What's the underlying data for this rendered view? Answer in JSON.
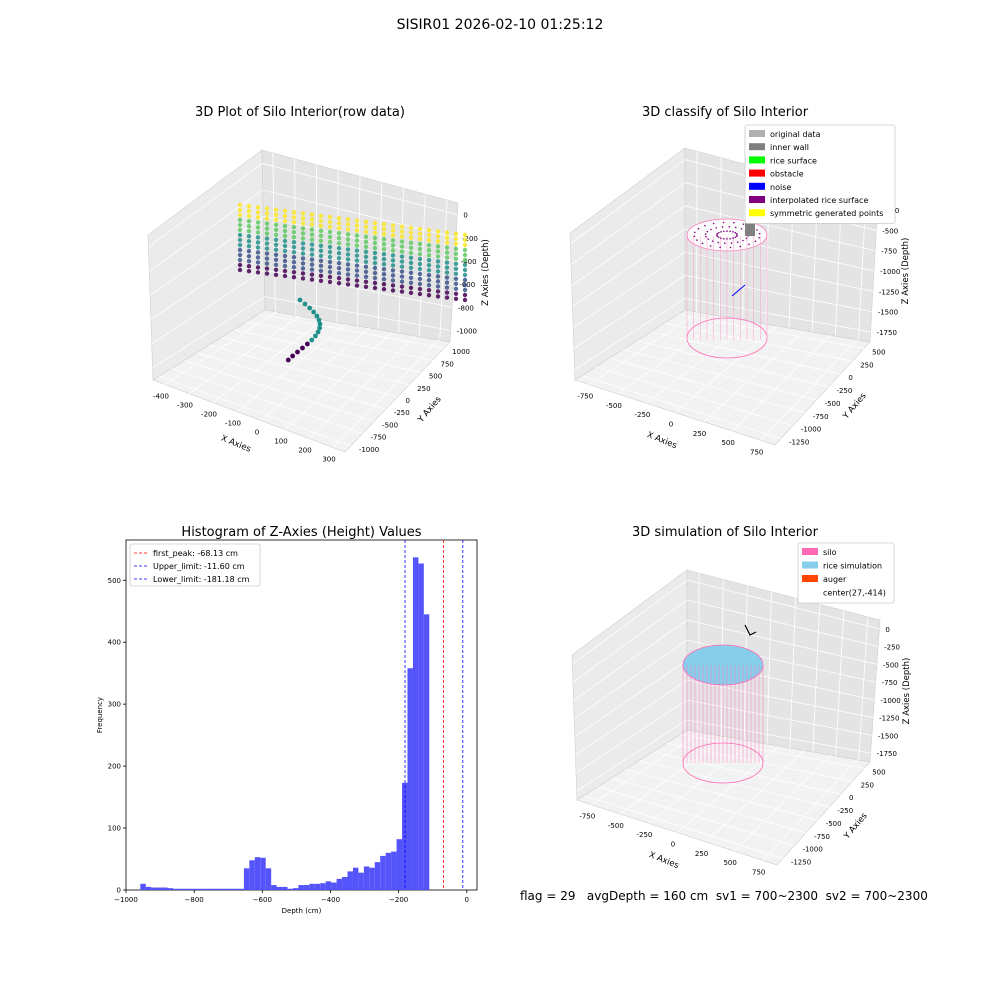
{
  "suptitle": "SISIR01 2026-02-10 01:25:12",
  "footer": "flag = 29   avgDepth = 160 cm  sv1 = 700~2300  sv2 = 700~2300",
  "chart_data": [
    {
      "type": "scatter",
      "projection": "3d",
      "title": "3D Plot of Silo Interior(row data)",
      "xlabel": "X Axies",
      "ylabel": "Y Axies",
      "zlabel": "Z Axies (Depth)",
      "xticks": [
        "-400",
        "-300",
        "-200",
        "-100",
        "0",
        "100",
        "200",
        "300"
      ],
      "yticks": [
        "-1000",
        "-750",
        "-500",
        "-250",
        "0",
        "250",
        "500",
        "750",
        "1000"
      ],
      "zticks": [
        "0",
        "-200",
        "-400",
        "-600",
        "-800",
        "-1000"
      ],
      "xlim": [
        -450,
        300
      ],
      "ylim": [
        -1000,
        1000
      ],
      "zlim": [
        -1000,
        0
      ],
      "colormap": "viridis",
      "grid": true
    },
    {
      "type": "scatter",
      "projection": "3d",
      "title": "3D classify of Silo Interior",
      "xlabel": "X Axies",
      "ylabel": "Y Axies",
      "zlabel": "Z Axies (Depth)",
      "xticks": [
        "-750",
        "-500",
        "-250",
        "0",
        "250",
        "500",
        "750"
      ],
      "yticks": [
        "-1250",
        "-1000",
        "-750",
        "-500",
        "-250",
        "0",
        "250",
        "500"
      ],
      "zticks": [
        "-250",
        "-500",
        "-750",
        "-1000",
        "-1250",
        "-1500",
        "-1750"
      ],
      "legend_position": "top-right",
      "legend": [
        {
          "label": "original data",
          "color": "#b0b0b0"
        },
        {
          "label": "inner wall",
          "color": "#808080"
        },
        {
          "label": "rice surface",
          "color": "#00ff00"
        },
        {
          "label": "obstacle",
          "color": "#ff0000"
        },
        {
          "label": "noise",
          "color": "#0000ff"
        },
        {
          "label": "interpolated rice surface",
          "color": "#800080"
        },
        {
          "label": "symmetric generated points",
          "color": "#ffff00"
        }
      ],
      "grid": true
    },
    {
      "type": "bar",
      "title": "Histogram of Z-Axies (Height) Values",
      "xlabel": "Depth (cm)",
      "ylabel": "Frequency",
      "xlim": [
        -1000,
        30
      ],
      "ylim": [
        0,
        565
      ],
      "xticks": [
        -1000,
        -800,
        -600,
        -400,
        -200,
        0
      ],
      "yticks": [
        0,
        100,
        200,
        300,
        400,
        500
      ],
      "bin_width": 16,
      "bins": [
        {
          "x": -958,
          "count": 10
        },
        {
          "x": -942,
          "count": 5
        },
        {
          "x": -926,
          "count": 4
        },
        {
          "x": -910,
          "count": 4
        },
        {
          "x": -894,
          "count": 4
        },
        {
          "x": -878,
          "count": 3
        },
        {
          "x": -862,
          "count": 2
        },
        {
          "x": -846,
          "count": 2
        },
        {
          "x": -830,
          "count": 2
        },
        {
          "x": -814,
          "count": 2
        },
        {
          "x": -798,
          "count": 2
        },
        {
          "x": -782,
          "count": 2
        },
        {
          "x": -766,
          "count": 2
        },
        {
          "x": -750,
          "count": 2
        },
        {
          "x": -734,
          "count": 2
        },
        {
          "x": -718,
          "count": 2
        },
        {
          "x": -702,
          "count": 2
        },
        {
          "x": -686,
          "count": 2
        },
        {
          "x": -670,
          "count": 2
        },
        {
          "x": -654,
          "count": 35
        },
        {
          "x": -638,
          "count": 48
        },
        {
          "x": -622,
          "count": 53
        },
        {
          "x": -606,
          "count": 52
        },
        {
          "x": -590,
          "count": 35
        },
        {
          "x": -574,
          "count": 8
        },
        {
          "x": -558,
          "count": 5
        },
        {
          "x": -542,
          "count": 5
        },
        {
          "x": -526,
          "count": 2
        },
        {
          "x": -510,
          "count": 3
        },
        {
          "x": -494,
          "count": 8
        },
        {
          "x": -478,
          "count": 8
        },
        {
          "x": -462,
          "count": 10
        },
        {
          "x": -446,
          "count": 10
        },
        {
          "x": -430,
          "count": 11
        },
        {
          "x": -414,
          "count": 14
        },
        {
          "x": -398,
          "count": 12
        },
        {
          "x": -382,
          "count": 18
        },
        {
          "x": -366,
          "count": 21
        },
        {
          "x": -350,
          "count": 30
        },
        {
          "x": -334,
          "count": 36
        },
        {
          "x": -318,
          "count": 28
        },
        {
          "x": -302,
          "count": 38
        },
        {
          "x": -286,
          "count": 36
        },
        {
          "x": -270,
          "count": 45
        },
        {
          "x": -254,
          "count": 55
        },
        {
          "x": -238,
          "count": 60
        },
        {
          "x": -222,
          "count": 62
        },
        {
          "x": -206,
          "count": 82
        },
        {
          "x": -190,
          "count": 173
        },
        {
          "x": -174,
          "count": 358
        },
        {
          "x": -158,
          "count": 537
        },
        {
          "x": -142,
          "count": 527
        },
        {
          "x": -126,
          "count": 445
        }
      ],
      "vlines": [
        {
          "label": "first_peak: -68.13 cm",
          "x": -68.13,
          "color": "#ff0000"
        },
        {
          "label": "Upper_limit: -11.60 cm",
          "x": -11.6,
          "color": "#0000ff"
        },
        {
          "label": "Lower_limit: -181.18 cm",
          "x": -181.18,
          "color": "#0000ff"
        }
      ],
      "bar_color": "#4b4bfa",
      "legend_position": "top-left"
    },
    {
      "type": "scatter",
      "projection": "3d",
      "title": "3D simulation of Silo Interior",
      "xlabel": "X Axies",
      "ylabel": "Y Axies",
      "zlabel": "Z Axies (Depth)",
      "xticks": [
        "-750",
        "-500",
        "-250",
        "0",
        "250",
        "500",
        "750"
      ],
      "yticks": [
        "-1250",
        "-1000",
        "-750",
        "-500",
        "-250",
        "0",
        "250",
        "500"
      ],
      "zticks": [
        "0",
        "-250",
        "-500",
        "-750",
        "-1000",
        "-1250",
        "-1500",
        "-1750"
      ],
      "legend_position": "top-right",
      "legend": [
        {
          "label": "silo",
          "color": "#ff69b4"
        },
        {
          "label": "rice simulation",
          "color": "#87ceeb"
        },
        {
          "label": "auger",
          "color": "#ff4500"
        },
        {
          "label": "center(27,-414)",
          "color": ""
        }
      ],
      "grid": true
    }
  ]
}
